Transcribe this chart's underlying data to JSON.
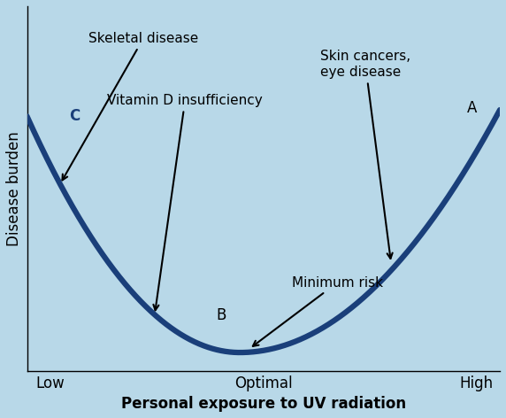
{
  "background_color": "#b8d8e8",
  "curve_color": "#1a3f7a",
  "curve_linewidth": 4.5,
  "xlabel": "Personal exposure to UV radiation",
  "ylabel": "Disease burden",
  "xtick_labels": [
    "Low",
    "Optimal",
    "High"
  ],
  "xtick_positions": [
    0.05,
    0.5,
    0.95
  ],
  "figsize": [
    5.72,
    4.72
  ],
  "dpi": 100,
  "font_size_labels": 12,
  "font_size_ticks": 12,
  "font_size_annotations": 11,
  "font_size_points": 12
}
